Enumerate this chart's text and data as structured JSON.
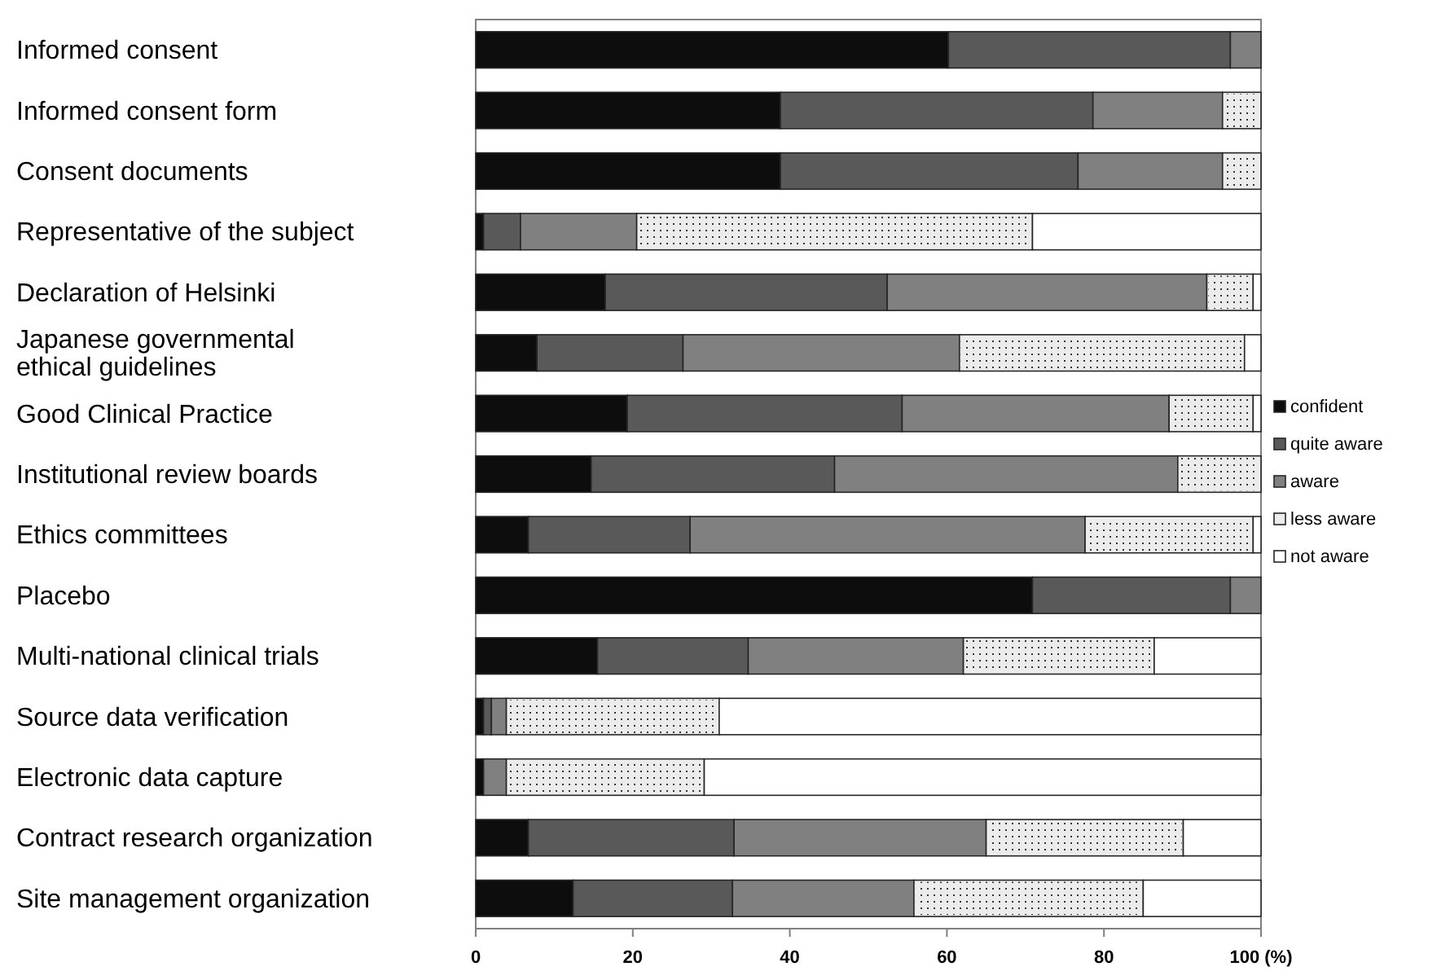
{
  "chart_data": {
    "type": "bar",
    "orientation": "horizontal",
    "stacked": true,
    "categories": [
      "Informed consent",
      "Informed consent form",
      "Consent documents",
      "Representative of the subject",
      "Declaration of Helsinki",
      "Japanese governmental ethical guidelines",
      "Good Clinical Practice",
      "Institutional review boards",
      "Ethics committees",
      "Placebo",
      "Multi-national  clinical trials",
      "Source data verification",
      "Electronic data capture",
      "Contract research organization",
      "Site management organization"
    ],
    "series": [
      {
        "name": "confident",
        "color": "#0d0d0d",
        "values": [
          60.2,
          38.8,
          38.8,
          1,
          16.5,
          7.8,
          19.3,
          14.7,
          6.7,
          70.9,
          15.5,
          1,
          1,
          6.7,
          12.4
        ]
      },
      {
        "name": "quite aware",
        "color": "#595959",
        "values": [
          35.9,
          39.8,
          37.9,
          4.7,
          35.9,
          18.6,
          35,
          31,
          20.6,
          25.2,
          19.2,
          1,
          0,
          26.2,
          20.3
        ]
      },
      {
        "name": "aware",
        "color": "#808080",
        "values": [
          3.9,
          16.5,
          18.4,
          14.8,
          40.7,
          35.2,
          34,
          43.7,
          50.3,
          3.9,
          27.4,
          1.9,
          2.9,
          32.1,
          23.1
        ]
      },
      {
        "name": "less aware",
        "color": "#ececec",
        "values": [
          0,
          4.9,
          4.9,
          50.4,
          5.9,
          36.3,
          10.7,
          10.6,
          21.4,
          0,
          24.3,
          27.1,
          25.2,
          25.1,
          29.2
        ]
      },
      {
        "name": "not aware",
        "color": "#ffffff",
        "values": [
          0,
          0,
          0,
          29.1,
          1,
          2.1,
          1,
          0,
          1,
          0,
          13.6,
          69,
          70.9,
          9.9,
          15
        ]
      }
    ],
    "xlim": [
      0,
      100
    ],
    "xticks": [
      0,
      20,
      40,
      60,
      80,
      {
        "value": 100,
        "label": "100 (%)"
      }
    ],
    "grid": false,
    "legend": "right"
  }
}
